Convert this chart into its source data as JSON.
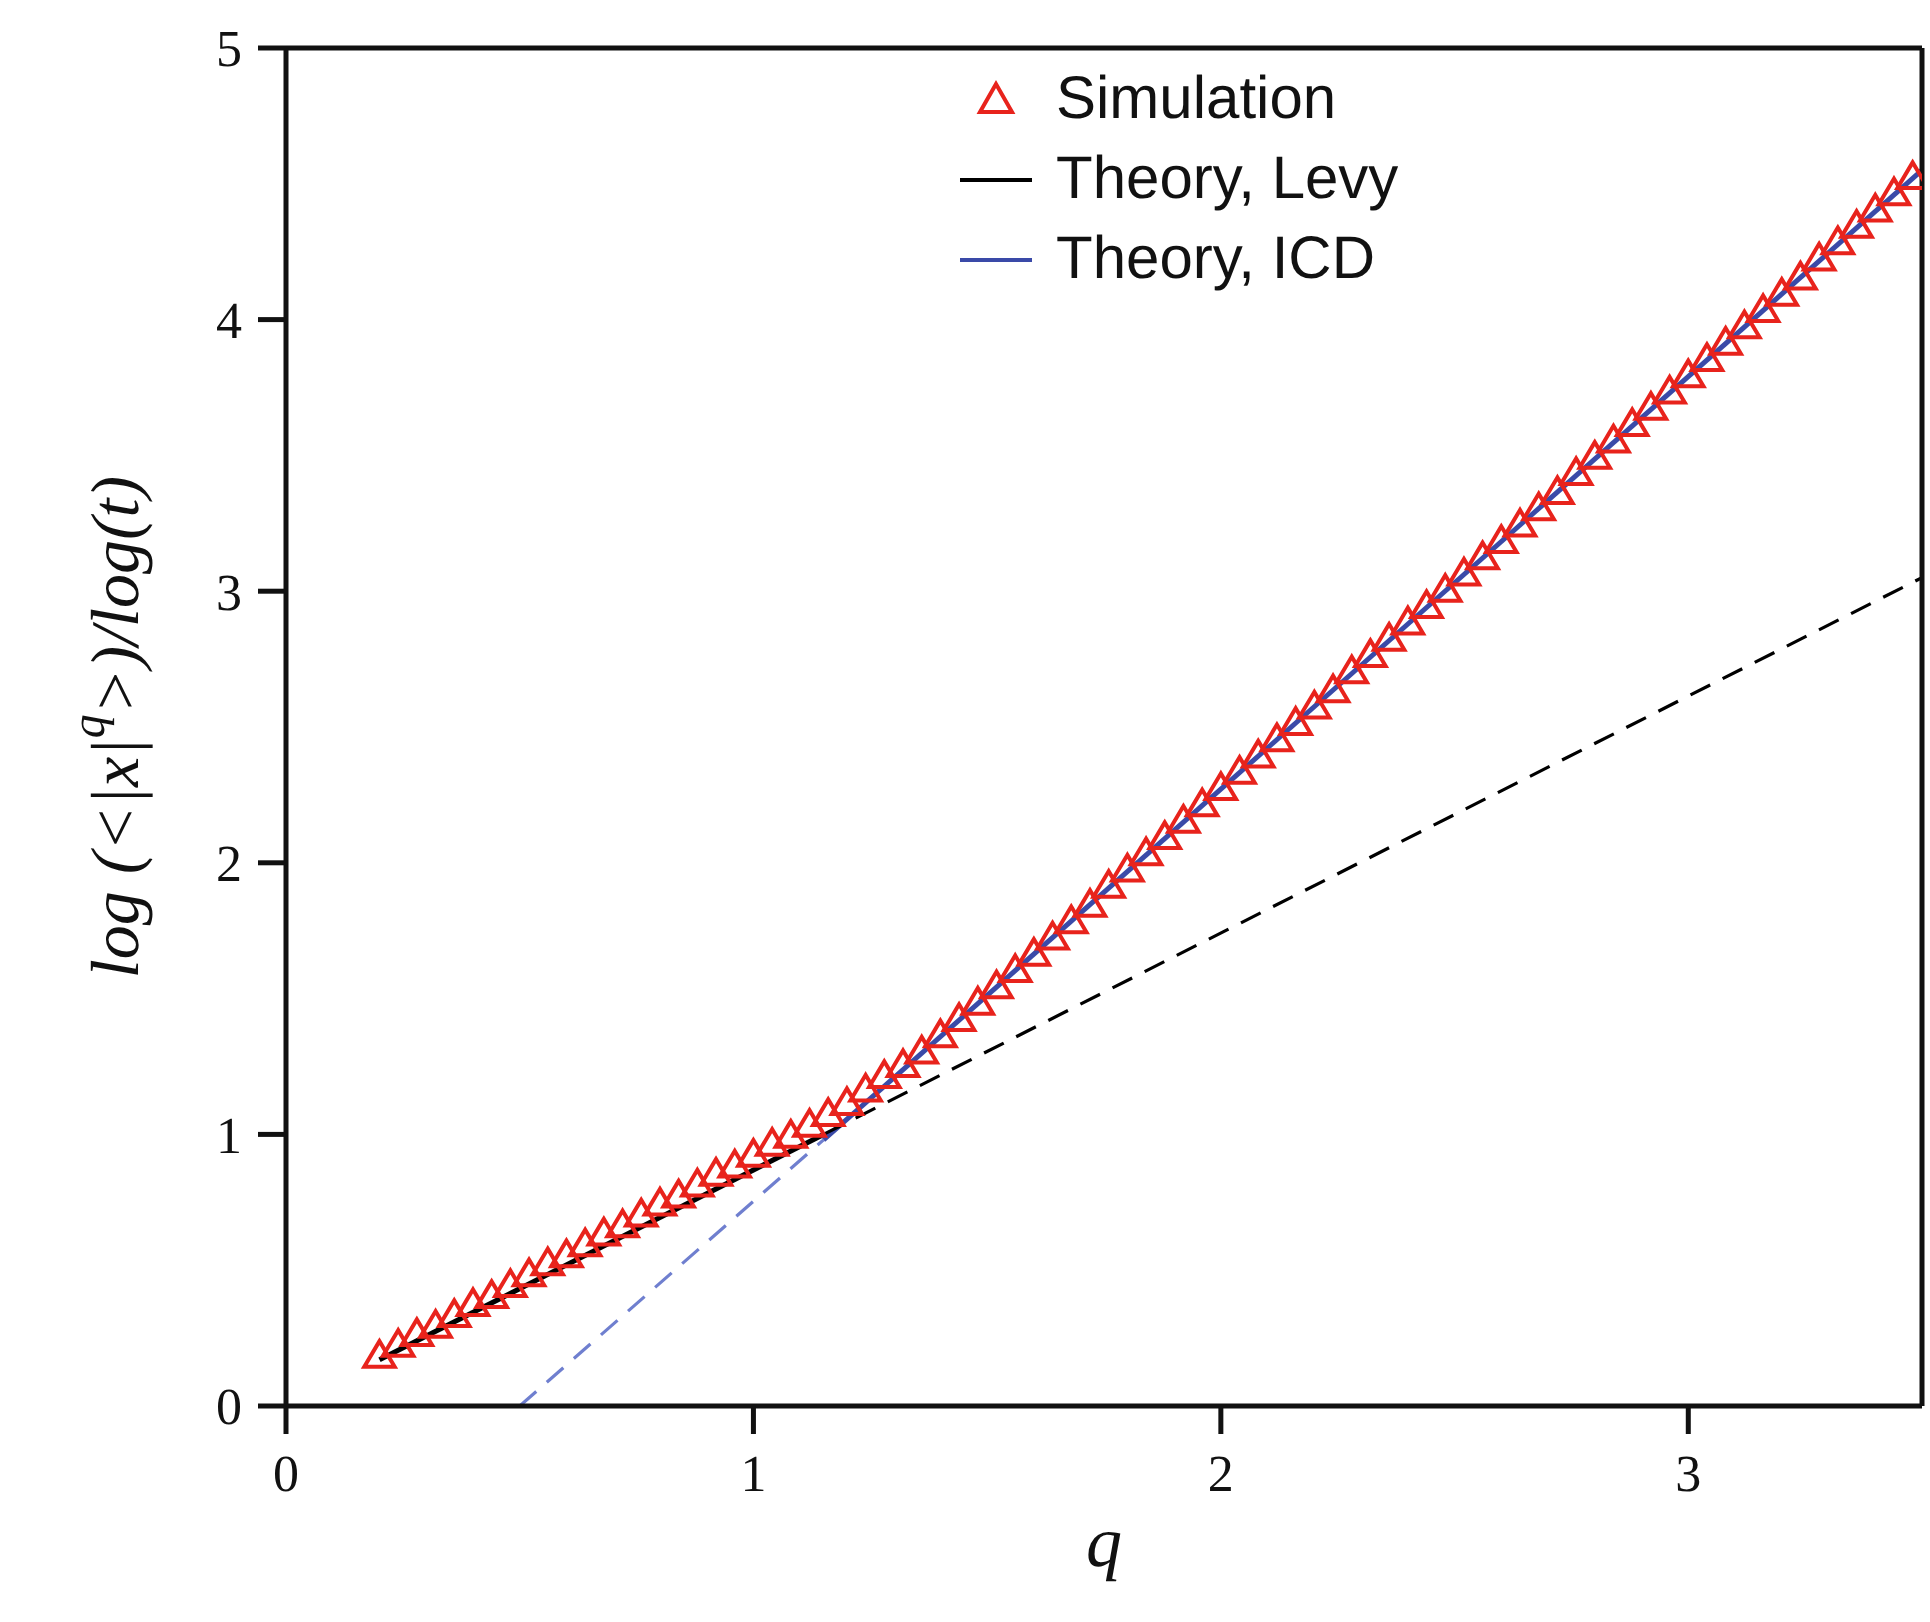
{
  "chart_data": {
    "type": "line",
    "xlabel": "q",
    "ylabel": "log (<|x|$^{q}$>)/log(t)",
    "xlim": [
      0,
      3.5
    ],
    "xticks": [
      0,
      1,
      2,
      3
    ],
    "ylim": [
      0,
      5
    ],
    "yticks": [
      0,
      1,
      2,
      3,
      4,
      5
    ],
    "grid": false,
    "legend": "top",
    "series": [
      {
        "name": "Simulation",
        "type": "scatter",
        "marker": "triangle",
        "color": "#e8231c",
        "x": [
          0.2,
          0.24,
          0.28,
          0.32,
          0.36,
          0.4,
          0.44,
          0.48,
          0.52,
          0.56,
          0.6,
          0.64,
          0.68,
          0.72,
          0.76,
          0.8,
          0.84,
          0.88,
          0.92,
          0.96,
          1.0,
          1.04,
          1.08,
          1.12,
          1.16,
          1.2,
          1.24,
          1.28,
          1.32,
          1.36,
          1.4,
          1.44,
          1.48,
          1.52,
          1.56,
          1.6,
          1.64,
          1.68,
          1.72,
          1.76,
          1.8,
          1.84,
          1.88,
          1.92,
          1.96,
          2.0,
          2.04,
          2.08,
          2.12,
          2.16,
          2.2,
          2.24,
          2.28,
          2.32,
          2.36,
          2.4,
          2.44,
          2.48,
          2.52,
          2.56,
          2.6,
          2.64,
          2.68,
          2.72,
          2.76,
          2.8,
          2.84,
          2.88,
          2.92,
          2.96,
          3.0,
          3.04,
          3.08,
          3.12,
          3.16,
          3.2,
          3.24,
          3.28,
          3.32,
          3.36,
          3.4,
          3.44,
          3.48
        ],
        "values": [
          0.18,
          0.22,
          0.26,
          0.29,
          0.33,
          0.37,
          0.4,
          0.44,
          0.48,
          0.52,
          0.55,
          0.59,
          0.63,
          0.66,
          0.7,
          0.74,
          0.77,
          0.81,
          0.85,
          0.88,
          0.92,
          0.96,
          0.99,
          1.03,
          1.07,
          1.11,
          1.16,
          1.21,
          1.25,
          1.3,
          1.36,
          1.42,
          1.48,
          1.54,
          1.6,
          1.66,
          1.72,
          1.78,
          1.84,
          1.91,
          1.97,
          2.03,
          2.09,
          2.15,
          2.21,
          2.27,
          2.33,
          2.39,
          2.45,
          2.51,
          2.57,
          2.63,
          2.7,
          2.76,
          2.82,
          2.88,
          2.94,
          3.0,
          3.06,
          3.12,
          3.18,
          3.24,
          3.3,
          3.36,
          3.43,
          3.49,
          3.55,
          3.61,
          3.67,
          3.73,
          3.79,
          3.85,
          3.91,
          3.97,
          4.03,
          4.09,
          4.15,
          4.22,
          4.28,
          4.34,
          4.4,
          4.46,
          4.52
        ]
      },
      {
        "name": "Theory, Levy",
        "type": "line",
        "line_style": "solid",
        "color": "#000000",
        "x": [
          0.2,
          1.15
        ],
        "values": [
          0.17,
          1.0
        ]
      },
      {
        "name": "Theory, ICD",
        "type": "line",
        "line_style": "solid",
        "color": "#3a4aa8",
        "x": [
          1.15,
          3.5
        ],
        "values": [
          0.98,
          4.55
        ]
      },
      {
        "type": "line",
        "line_style": "dashed",
        "color": "#000000",
        "x": [
          1.15,
          3.5
        ],
        "values": [
          1.0,
          3.05
        ]
      },
      {
        "type": "line",
        "line_style": "dashed",
        "color": "#6f7fcf",
        "x": [
          0.5,
          1.15
        ],
        "values": [
          0.0,
          0.98
        ]
      }
    ]
  }
}
